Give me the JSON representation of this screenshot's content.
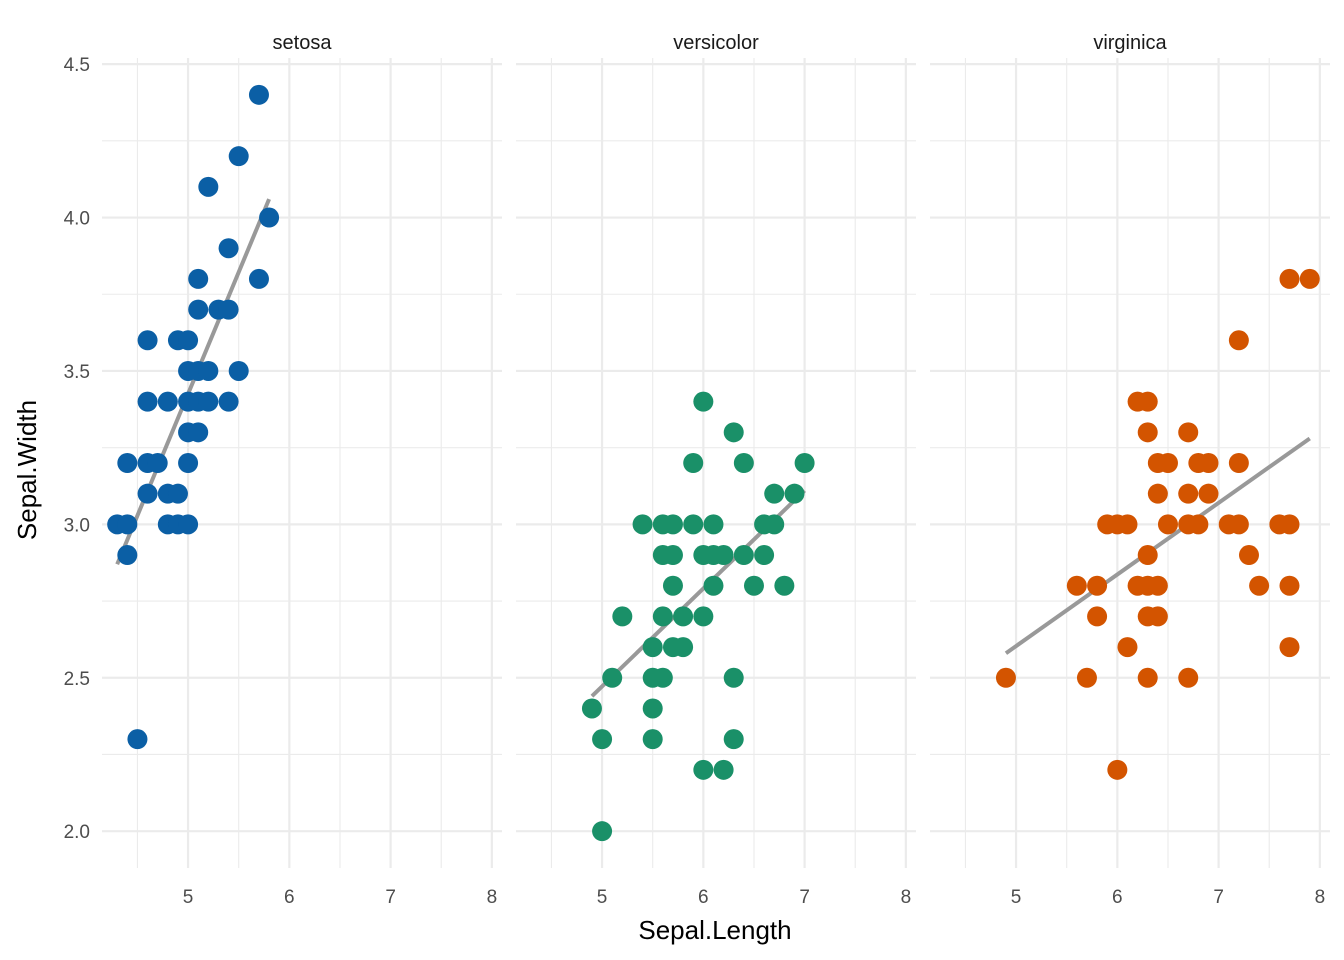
{
  "chart_data": {
    "type": "scatter",
    "xlabel": "Sepal.Length",
    "ylabel": "Sepal.Width",
    "xlim": [
      4.15,
      8.1
    ],
    "ylim": [
      1.88,
      4.52
    ],
    "x_ticks": [
      5,
      6,
      7,
      8
    ],
    "y_ticks": [
      2.0,
      2.5,
      3.0,
      3.5,
      4.0,
      4.5
    ],
    "y_tick_labels": [
      "2.0",
      "2.5",
      "3.0",
      "3.5",
      "4.0",
      "4.5"
    ],
    "grid": true,
    "legend": "none",
    "panels": [
      {
        "name": "setosa",
        "color": "#0b5fa5",
        "trend": {
          "x1": 4.3,
          "y1": 2.87,
          "x2": 5.8,
          "y2": 4.06
        },
        "points": [
          [
            5.7,
            4.4
          ],
          [
            5.5,
            4.2
          ],
          [
            5.2,
            4.1
          ],
          [
            5.8,
            4.0
          ],
          [
            5.4,
            3.9
          ],
          [
            5.1,
            3.8
          ],
          [
            5.7,
            3.8
          ],
          [
            5.1,
            3.7
          ],
          [
            5.3,
            3.7
          ],
          [
            5.4,
            3.7
          ],
          [
            4.6,
            3.6
          ],
          [
            4.9,
            3.6
          ],
          [
            5.0,
            3.6
          ],
          [
            5.0,
            3.5
          ],
          [
            5.1,
            3.5
          ],
          [
            5.2,
            3.5
          ],
          [
            5.5,
            3.5
          ],
          [
            4.6,
            3.4
          ],
          [
            4.8,
            3.4
          ],
          [
            5.0,
            3.4
          ],
          [
            5.1,
            3.4
          ],
          [
            5.2,
            3.4
          ],
          [
            5.4,
            3.4
          ],
          [
            5.0,
            3.3
          ],
          [
            5.1,
            3.3
          ],
          [
            4.4,
            3.2
          ],
          [
            4.6,
            3.2
          ],
          [
            4.7,
            3.2
          ],
          [
            5.0,
            3.2
          ],
          [
            4.6,
            3.1
          ],
          [
            4.8,
            3.1
          ],
          [
            4.9,
            3.1
          ],
          [
            4.3,
            3.0
          ],
          [
            4.4,
            3.0
          ],
          [
            4.8,
            3.0
          ],
          [
            4.9,
            3.0
          ],
          [
            5.0,
            3.0
          ],
          [
            4.4,
            2.9
          ],
          [
            4.5,
            2.3
          ]
        ]
      },
      {
        "name": "versicolor",
        "color": "#1a9068",
        "trend": {
          "x1": 4.9,
          "y1": 2.44,
          "x2": 7.0,
          "y2": 3.11
        },
        "points": [
          [
            6.0,
            3.4
          ],
          [
            6.3,
            3.3
          ],
          [
            5.9,
            3.2
          ],
          [
            6.4,
            3.2
          ],
          [
            7.0,
            3.2
          ],
          [
            6.7,
            3.1
          ],
          [
            6.9,
            3.1
          ],
          [
            5.4,
            3.0
          ],
          [
            5.6,
            3.0
          ],
          [
            5.7,
            3.0
          ],
          [
            5.9,
            3.0
          ],
          [
            6.1,
            3.0
          ],
          [
            6.6,
            3.0
          ],
          [
            6.7,
            3.0
          ],
          [
            5.6,
            2.9
          ],
          [
            5.7,
            2.9
          ],
          [
            6.0,
            2.9
          ],
          [
            6.1,
            2.9
          ],
          [
            6.2,
            2.9
          ],
          [
            6.4,
            2.9
          ],
          [
            6.6,
            2.9
          ],
          [
            5.7,
            2.8
          ],
          [
            6.1,
            2.8
          ],
          [
            6.5,
            2.8
          ],
          [
            6.8,
            2.8
          ],
          [
            5.2,
            2.7
          ],
          [
            5.6,
            2.7
          ],
          [
            5.8,
            2.7
          ],
          [
            6.0,
            2.7
          ],
          [
            5.5,
            2.6
          ],
          [
            5.7,
            2.6
          ],
          [
            5.8,
            2.6
          ],
          [
            5.1,
            2.5
          ],
          [
            5.5,
            2.5
          ],
          [
            5.6,
            2.5
          ],
          [
            6.3,
            2.5
          ],
          [
            4.9,
            2.4
          ],
          [
            5.5,
            2.4
          ],
          [
            5.0,
            2.3
          ],
          [
            5.5,
            2.3
          ],
          [
            6.3,
            2.3
          ],
          [
            6.0,
            2.2
          ],
          [
            6.2,
            2.2
          ],
          [
            5.0,
            2.0
          ]
        ]
      },
      {
        "name": "virginica",
        "color": "#d35400",
        "trend": {
          "x1": 4.9,
          "y1": 2.58,
          "x2": 7.9,
          "y2": 3.28
        },
        "points": [
          [
            7.7,
            3.8
          ],
          [
            7.9,
            3.8
          ],
          [
            7.2,
            3.6
          ],
          [
            6.2,
            3.4
          ],
          [
            6.3,
            3.4
          ],
          [
            6.3,
            3.3
          ],
          [
            6.7,
            3.3
          ],
          [
            6.4,
            3.2
          ],
          [
            6.5,
            3.2
          ],
          [
            6.8,
            3.2
          ],
          [
            6.9,
            3.2
          ],
          [
            7.2,
            3.2
          ],
          [
            6.4,
            3.1
          ],
          [
            6.7,
            3.1
          ],
          [
            6.9,
            3.1
          ],
          [
            5.9,
            3.0
          ],
          [
            6.0,
            3.0
          ],
          [
            6.1,
            3.0
          ],
          [
            6.5,
            3.0
          ],
          [
            6.7,
            3.0
          ],
          [
            6.8,
            3.0
          ],
          [
            7.1,
            3.0
          ],
          [
            7.2,
            3.0
          ],
          [
            7.6,
            3.0
          ],
          [
            7.7,
            3.0
          ],
          [
            6.3,
            2.9
          ],
          [
            7.3,
            2.9
          ],
          [
            5.6,
            2.8
          ],
          [
            5.8,
            2.8
          ],
          [
            6.2,
            2.8
          ],
          [
            6.3,
            2.8
          ],
          [
            6.4,
            2.8
          ],
          [
            7.4,
            2.8
          ],
          [
            7.7,
            2.8
          ],
          [
            5.8,
            2.7
          ],
          [
            6.3,
            2.7
          ],
          [
            6.4,
            2.7
          ],
          [
            6.1,
            2.6
          ],
          [
            7.7,
            2.6
          ],
          [
            4.9,
            2.5
          ],
          [
            5.7,
            2.5
          ],
          [
            6.3,
            2.5
          ],
          [
            6.7,
            2.5
          ],
          [
            6.0,
            2.2
          ]
        ]
      }
    ]
  }
}
